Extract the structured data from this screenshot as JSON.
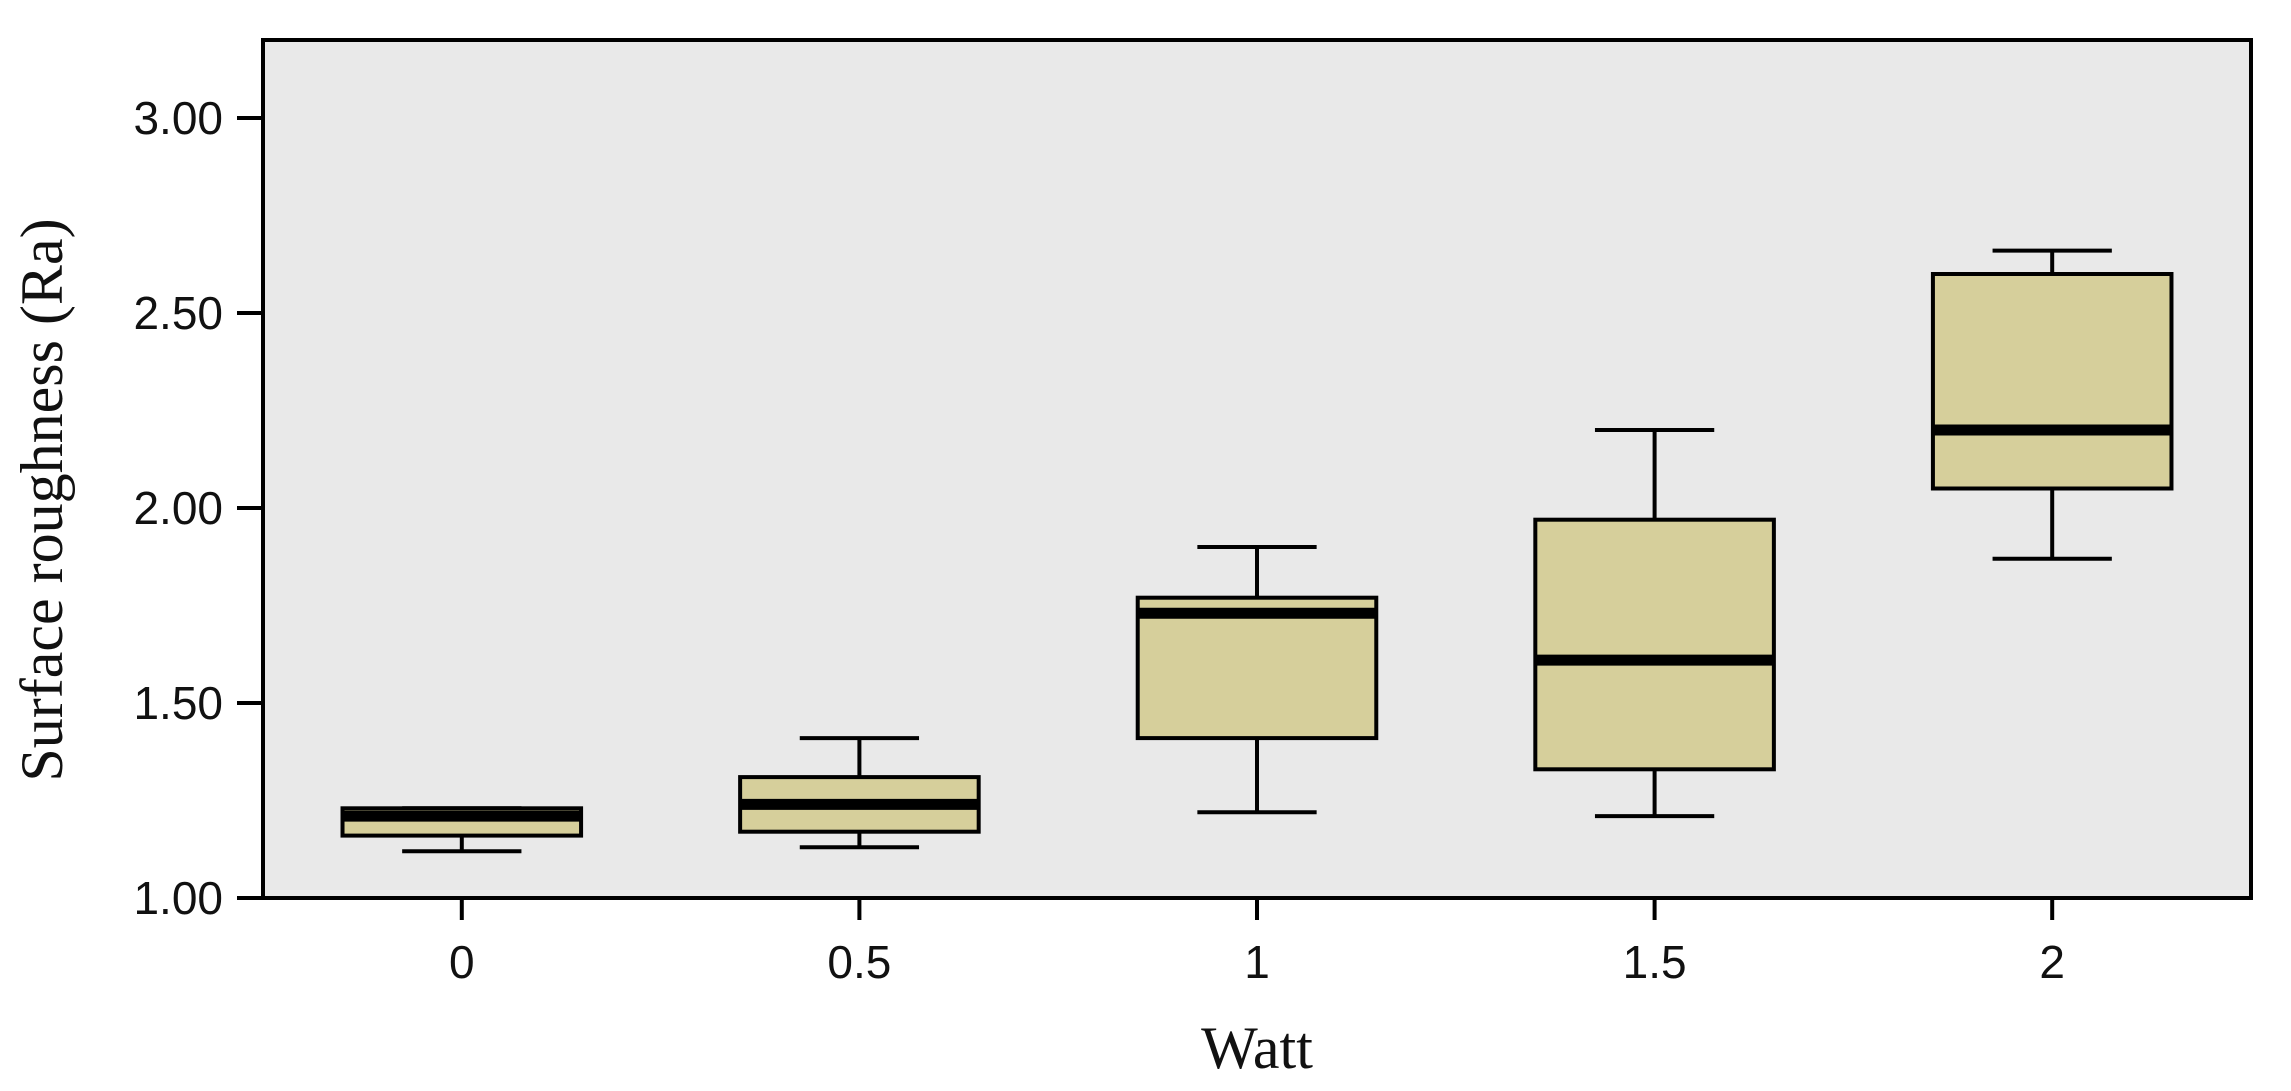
{
  "chart_data": {
    "type": "boxplot",
    "title": "",
    "xlabel": "Watt",
    "ylabel": "Surface roughness  (Ra)",
    "categories": [
      "0",
      "0.5",
      "1",
      "1.5",
      "2"
    ],
    "yticks": [
      "1.00",
      "1.50",
      "2.00",
      "2.50",
      "3.00"
    ],
    "ylim": [
      1.0,
      3.2
    ],
    "grid": false,
    "legend": "none",
    "boxes": [
      {
        "category": "0",
        "whisker_low": 1.12,
        "q1": 1.16,
        "median": 1.21,
        "q3": 1.23,
        "whisker_high": 1.23
      },
      {
        "category": "0.5",
        "whisker_low": 1.13,
        "q1": 1.17,
        "median": 1.24,
        "q3": 1.31,
        "whisker_high": 1.41
      },
      {
        "category": "1",
        "whisker_low": 1.22,
        "q1": 1.41,
        "median": 1.73,
        "q3": 1.77,
        "whisker_high": 1.9
      },
      {
        "category": "1.5",
        "whisker_low": 1.21,
        "q1": 1.33,
        "median": 1.61,
        "q3": 1.97,
        "whisker_high": 2.2
      },
      {
        "category": "2",
        "whisker_low": 1.87,
        "q1": 2.05,
        "median": 2.2,
        "q3": 2.6,
        "whisker_high": 2.66
      }
    ],
    "colors": {
      "plot_background": "#e9e9e9",
      "box_fill": "#d6cf9b",
      "stroke": "#000000"
    }
  }
}
